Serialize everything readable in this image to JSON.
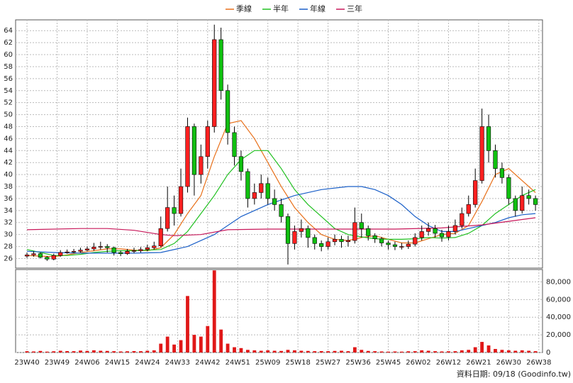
{
  "chart_data": [
    {
      "type": "candlestick",
      "legend": "top",
      "grid": true,
      "up_color": "#ff2020",
      "down_color": "#10c010",
      "x": [
        0,
        2,
        4,
        6,
        8,
        10,
        12,
        14,
        16,
        18,
        20,
        22,
        24,
        26,
        28,
        30,
        32,
        34,
        36,
        38,
        40,
        42,
        44,
        46,
        48,
        50,
        52,
        54,
        56,
        58,
        60,
        62,
        64,
        66,
        68,
        70,
        72,
        74,
        76,
        78,
        80,
        82,
        84,
        86,
        88,
        90,
        92,
        94,
        96,
        98,
        100,
        102,
        104,
        106,
        108,
        110,
        112,
        114,
        116,
        118,
        120,
        122,
        124,
        126,
        128,
        130,
        132,
        134,
        136,
        138,
        140,
        142,
        144,
        146,
        148,
        150,
        152
      ],
      "open": [
        26.4,
        26.6,
        26.8,
        26.2,
        25.9,
        26.5,
        27.0,
        27.1,
        27.2,
        27.4,
        27.6,
        27.9,
        28.0,
        27.8,
        27.0,
        26.8,
        27.2,
        27.3,
        27.5,
        27.8,
        28.1,
        31.0,
        34.5,
        33.5,
        38.0,
        48.0,
        40.0,
        43.0,
        48.0,
        62.5,
        54.0,
        47.0,
        43.0,
        40.5,
        36.0,
        37.0,
        38.5,
        36.0,
        35.0,
        33.0,
        28.5,
        30.5,
        31.0,
        29.5,
        28.5,
        28.0,
        28.8,
        29.2,
        28.8,
        29.0,
        32.0,
        31.0,
        29.8,
        29.3,
        28.6,
        28.3,
        28.0,
        28.0,
        28.4,
        29.5,
        30.5,
        31.0,
        30.2,
        29.6,
        30.5,
        31.5,
        33.5,
        35.0,
        39.0,
        48.0,
        44.0,
        41.0,
        39.5,
        36.0,
        34.0,
        36.5,
        36.0
      ],
      "high": [
        27.0,
        27.2,
        27.0,
        26.4,
        26.8,
        27.4,
        27.5,
        27.6,
        27.8,
        28.0,
        28.6,
        28.8,
        28.4,
        28.0,
        27.3,
        27.6,
        27.8,
        27.9,
        28.3,
        28.8,
        33.0,
        38.0,
        36.5,
        41.0,
        49.5,
        48.5,
        45.0,
        49.0,
        65.0,
        64.5,
        55.0,
        48.0,
        44.0,
        41.0,
        38.5,
        40.0,
        39.5,
        37.5,
        36.0,
        33.5,
        31.5,
        32.5,
        31.5,
        30.0,
        29.0,
        29.5,
        30.0,
        29.8,
        29.8,
        34.5,
        33.5,
        31.5,
        30.2,
        29.6,
        29.0,
        28.8,
        28.6,
        29.0,
        30.2,
        31.5,
        32.0,
        31.6,
        30.8,
        31.5,
        32.5,
        34.5,
        36.5,
        41.0,
        51.0,
        50.0,
        45.0,
        42.0,
        40.0,
        36.5,
        38.0,
        37.5,
        36.5
      ],
      "low": [
        26.1,
        26.3,
        26.0,
        25.6,
        25.7,
        26.3,
        26.8,
        26.9,
        27.0,
        27.2,
        27.3,
        27.5,
        27.0,
        26.5,
        26.4,
        26.6,
        26.9,
        27.0,
        27.2,
        27.5,
        27.9,
        30.5,
        31.5,
        33.0,
        37.0,
        36.5,
        38.5,
        41.0,
        47.0,
        52.5,
        45.0,
        41.5,
        39.0,
        34.5,
        35.0,
        36.0,
        35.0,
        34.0,
        32.0,
        25.0,
        27.5,
        29.5,
        27.8,
        27.5,
        27.2,
        27.5,
        28.2,
        27.8,
        28.0,
        28.5,
        29.5,
        29.0,
        28.6,
        28.0,
        27.5,
        27.4,
        27.5,
        27.6,
        28.0,
        29.0,
        29.8,
        29.5,
        28.8,
        29.0,
        30.0,
        31.0,
        33.0,
        34.5,
        38.5,
        42.0,
        39.5,
        38.5,
        35.0,
        33.0,
        33.5,
        35.0,
        34.0
      ],
      "close": [
        26.6,
        26.8,
        26.2,
        25.9,
        26.5,
        27.0,
        27.1,
        27.2,
        27.4,
        27.6,
        27.9,
        28.0,
        27.8,
        27.0,
        26.8,
        27.2,
        27.3,
        27.5,
        27.8,
        28.1,
        31.0,
        34.5,
        33.5,
        38.0,
        48.0,
        40.0,
        43.0,
        48.0,
        62.5,
        54.0,
        47.0,
        43.0,
        40.5,
        36.0,
        37.0,
        38.5,
        36.0,
        35.0,
        33.0,
        28.5,
        30.5,
        31.0,
        29.5,
        28.5,
        28.0,
        28.8,
        29.2,
        28.8,
        29.0,
        32.0,
        31.0,
        29.8,
        29.3,
        28.6,
        28.3,
        28.0,
        28.0,
        28.4,
        29.5,
        30.5,
        31.0,
        30.2,
        29.6,
        30.5,
        31.5,
        33.5,
        35.0,
        39.0,
        48.0,
        44.0,
        41.0,
        39.5,
        36.0,
        34.0,
        36.5,
        36.0,
        35.0
      ],
      "series": [
        {
          "name": "季線",
          "color": "#e8701a",
          "x": [
            0,
            4,
            8,
            12,
            16,
            20,
            24,
            28,
            32,
            36,
            40,
            44,
            48,
            52,
            56,
            60,
            64,
            68,
            72,
            76,
            80,
            84,
            88,
            92,
            96,
            100,
            104,
            108,
            112,
            116,
            120,
            124,
            128,
            132,
            136,
            140,
            144,
            148,
            152
          ],
          "values": [
            26.5,
            26.4,
            26.3,
            26.6,
            27.0,
            27.3,
            27.6,
            27.6,
            27.4,
            27.3,
            27.8,
            30.0,
            33.5,
            36.5,
            43.0,
            48.5,
            49.0,
            46.0,
            42.0,
            38.0,
            34.5,
            32.0,
            30.0,
            29.2,
            29.0,
            29.5,
            29.8,
            29.2,
            28.6,
            28.6,
            29.3,
            30.0,
            30.2,
            31.5,
            35.5,
            40.0,
            41.0,
            39.0,
            37.0
          ]
        },
        {
          "name": "半年",
          "color": "#20c020",
          "x": [
            0,
            4,
            8,
            12,
            16,
            20,
            24,
            28,
            32,
            36,
            40,
            44,
            48,
            52,
            56,
            60,
            64,
            68,
            72,
            76,
            80,
            84,
            88,
            92,
            96,
            100,
            104,
            108,
            112,
            116,
            120,
            124,
            128,
            132,
            136,
            140,
            144,
            148,
            152
          ],
          "values": [
            27.5,
            27.0,
            26.5,
            26.5,
            26.7,
            27.0,
            27.2,
            27.3,
            27.3,
            27.4,
            27.5,
            28.5,
            30.5,
            33.5,
            36.5,
            40.0,
            42.5,
            44.0,
            44.0,
            41.0,
            37.5,
            35.0,
            33.0,
            31.0,
            30.0,
            29.6,
            29.3,
            29.2,
            29.2,
            29.3,
            29.5,
            29.4,
            29.5,
            30.2,
            31.5,
            33.5,
            35.0,
            36.5,
            37.5
          ]
        },
        {
          "name": "年線",
          "color": "#1a5fc8",
          "x": [
            0,
            8,
            16,
            24,
            32,
            40,
            48,
            56,
            64,
            72,
            80,
            88,
            96,
            100,
            104,
            108,
            112,
            116,
            120,
            124,
            128,
            132,
            136,
            140,
            144,
            148,
            152
          ],
          "values": [
            27.2,
            27.0,
            26.9,
            26.9,
            26.9,
            27.0,
            28.0,
            30.0,
            33.0,
            35.0,
            36.5,
            37.5,
            38.0,
            38.0,
            37.5,
            36.5,
            35.0,
            33.0,
            31.5,
            30.5,
            30.5,
            31.0,
            31.5,
            32.0,
            32.8,
            33.3,
            33.5
          ]
        },
        {
          "name": "三年",
          "color": "#c8185a",
          "x": [
            0,
            16,
            24,
            32,
            40,
            44,
            52,
            60,
            72,
            90,
            110,
            124,
            136,
            148,
            152
          ],
          "values": [
            30.8,
            31.0,
            31.0,
            30.7,
            30.0,
            29.8,
            30.0,
            30.8,
            30.9,
            30.9,
            30.9,
            31.1,
            31.6,
            32.5,
            32.8
          ]
        }
      ],
      "xlim": [
        -3.4,
        154.1
      ],
      "ylim": [
        24.4,
        65.8
      ],
      "yticks": [
        26,
        28,
        30,
        32,
        34,
        36,
        38,
        40,
        42,
        44,
        46,
        48,
        50,
        52,
        54,
        56,
        58,
        60,
        62,
        64
      ]
    },
    {
      "type": "bar",
      "color": "#e01818",
      "grid": true,
      "x": [
        0,
        2,
        4,
        6,
        8,
        10,
        12,
        14,
        16,
        18,
        20,
        22,
        24,
        26,
        28,
        30,
        32,
        34,
        36,
        38,
        40,
        42,
        44,
        46,
        48,
        50,
        52,
        54,
        56,
        58,
        60,
        62,
        64,
        66,
        68,
        70,
        72,
        74,
        76,
        78,
        80,
        82,
        84,
        86,
        88,
        90,
        92,
        94,
        96,
        98,
        100,
        102,
        104,
        106,
        108,
        110,
        112,
        114,
        116,
        118,
        120,
        122,
        124,
        126,
        128,
        130,
        132,
        134,
        136,
        138,
        140,
        142,
        144,
        146,
        148,
        150,
        152
      ],
      "values": [
        1500,
        1200,
        1800,
        1000,
        1400,
        2000,
        1600,
        1500,
        2200,
        1800,
        2500,
        2000,
        1800,
        1500,
        1200,
        1400,
        1600,
        1500,
        2000,
        2500,
        10000,
        18000,
        9000,
        14000,
        64000,
        20000,
        18000,
        30000,
        93000,
        26000,
        10000,
        6000,
        5000,
        3000,
        2500,
        2000,
        2500,
        2000,
        1800,
        3000,
        2500,
        2000,
        1800,
        1500,
        1600,
        1500,
        1800,
        2000,
        1500,
        6000,
        3000,
        1800,
        1500,
        1200,
        1000,
        1200,
        1000,
        1400,
        1500,
        2500,
        2000,
        1500,
        1200,
        1400,
        1500,
        2500,
        3000,
        6000,
        12000,
        8000,
        4000,
        3000,
        2500,
        2000,
        2500,
        2000,
        1500
      ],
      "xlim": [
        -3.4,
        154.1
      ],
      "ylim": [
        0,
        94000
      ],
      "yticks": [
        0,
        {
          "value": 20000,
          "label": "20,000"
        },
        {
          "value": 40000,
          "label": "40,000"
        },
        {
          "value": 60000,
          "label": "60,000"
        },
        {
          "value": 80000,
          "label": "80,000"
        }
      ],
      "xticks": [
        {
          "value": 0,
          "label": "23W40"
        },
        {
          "value": 9,
          "label": "23W49"
        },
        {
          "value": 18,
          "label": "24W06"
        },
        {
          "value": 27,
          "label": "24W15"
        },
        {
          "value": 36,
          "label": "24W24"
        },
        {
          "value": 45,
          "label": "24W33"
        },
        {
          "value": 54,
          "label": "24W42"
        },
        {
          "value": 63,
          "label": "24W51"
        },
        {
          "value": 72,
          "label": "25W09"
        },
        {
          "value": 81,
          "label": "25W18"
        },
        {
          "value": 90,
          "label": "25W27"
        },
        {
          "value": 99,
          "label": "25W36"
        },
        {
          "value": 108,
          "label": "25W45"
        },
        {
          "value": 117,
          "label": "26W02"
        },
        {
          "value": 126,
          "label": "26W12"
        },
        {
          "value": 135,
          "label": "26W21"
        },
        {
          "value": 144,
          "label": "26W30"
        },
        {
          "value": 153,
          "label": "26W38"
        }
      ]
    }
  ],
  "footer": "資料日期: 09/18 (Goodinfo.tw)"
}
